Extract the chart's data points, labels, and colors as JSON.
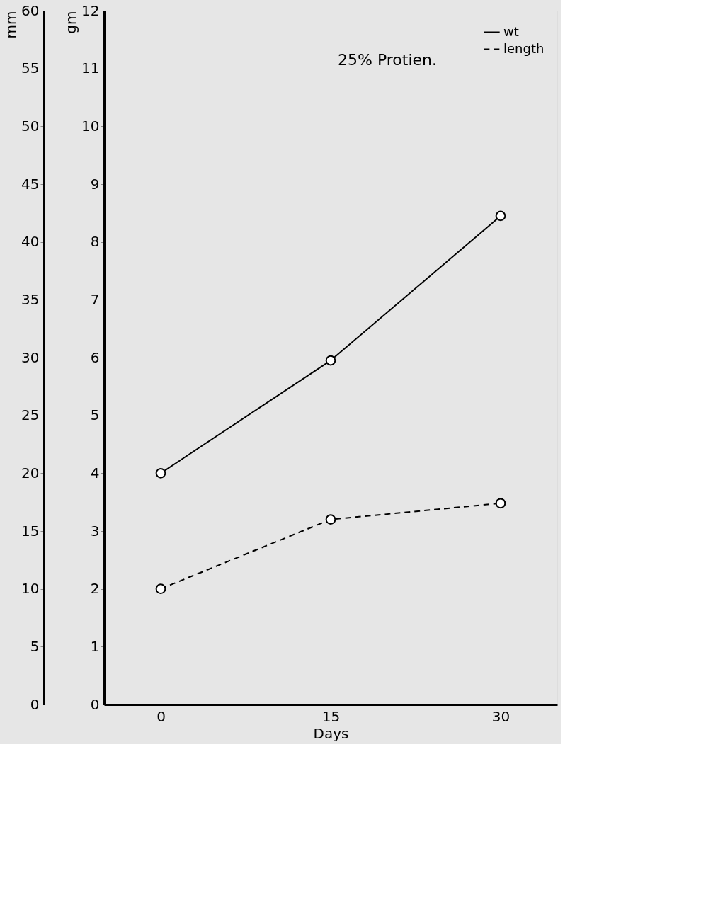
{
  "chart_data": {
    "type": "line",
    "annotations": [
      "25% Protien."
    ],
    "xlabel": "Days",
    "ylabel": "gm",
    "y2label": "mm",
    "x": [
      0,
      15,
      30
    ],
    "xlim": [
      -5,
      35
    ],
    "xticks": [
      0,
      15,
      30
    ],
    "ylim": [
      0,
      12
    ],
    "yticks": [
      0,
      1,
      2,
      3,
      4,
      5,
      6,
      7,
      8,
      9,
      10,
      11,
      12
    ],
    "y2lim": [
      0,
      60
    ],
    "y2ticks": [
      0,
      5,
      10,
      15,
      20,
      25,
      30,
      35,
      40,
      45,
      50,
      55,
      60
    ],
    "series": [
      {
        "name": "wt",
        "color": "#000000",
        "values": [
          4,
          5.95,
          8.45
        ],
        "line_style": "solid"
      },
      {
        "name": "length",
        "color": "#000000",
        "values": [
          10,
          16,
          17.4
        ],
        "axis": "y2",
        "line_style": "dashed"
      }
    ],
    "marker": "circle",
    "grid": false,
    "legend": "top right"
  }
}
